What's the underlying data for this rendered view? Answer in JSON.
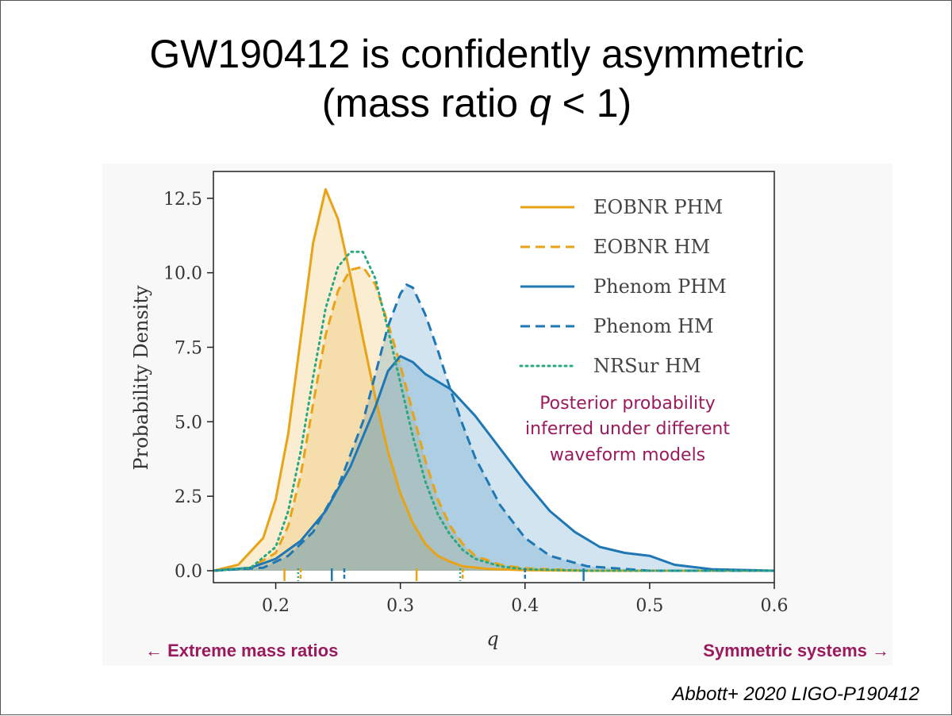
{
  "slide": {
    "title_line1": "GW190412 is confidently asymmetric",
    "title_line2_prefix": "(mass ratio ",
    "title_line2_var": "q",
    "title_line2_suffix": " < 1)",
    "citation": "Abbott+ 2020 LIGO-P190412"
  },
  "chart_data": {
    "type": "line",
    "title": "",
    "xlabel": "q",
    "ylabel": "Probability Density",
    "xlim": [
      0.15,
      0.6
    ],
    "ylim": [
      -0.4,
      13.4
    ],
    "xticks": [
      0.2,
      0.3,
      0.4,
      0.5,
      0.6
    ],
    "xtick_labels": [
      "0.2",
      "0.3",
      "0.4",
      "0.5",
      "0.6"
    ],
    "yticks": [
      0.0,
      2.5,
      5.0,
      7.5,
      10.0,
      12.5
    ],
    "ytick_labels": [
      "0.0",
      "2.5",
      "5.0",
      "7.5",
      "10.0",
      "12.5"
    ],
    "legend_position": "top-right",
    "series": [
      {
        "name": "EOBNR PHM",
        "color": "#e8a317",
        "style": "solid",
        "filled": true,
        "x": [
          0.15,
          0.17,
          0.19,
          0.2,
          0.21,
          0.22,
          0.23,
          0.24,
          0.25,
          0.26,
          0.27,
          0.28,
          0.29,
          0.3,
          0.31,
          0.32,
          0.33,
          0.34,
          0.35,
          0.37,
          0.4,
          0.45,
          0.6
        ],
        "y": [
          0.0,
          0.2,
          1.1,
          2.4,
          4.6,
          7.8,
          11.0,
          12.8,
          11.8,
          9.9,
          7.8,
          5.8,
          4.0,
          2.6,
          1.6,
          0.9,
          0.5,
          0.3,
          0.15,
          0.06,
          0.02,
          0.0,
          0.0
        ],
        "interval_ticks": [
          0.207,
          0.313
        ]
      },
      {
        "name": "EOBNR HM",
        "color": "#e8a317",
        "style": "dashed",
        "filled": true,
        "x": [
          0.15,
          0.18,
          0.2,
          0.21,
          0.22,
          0.23,
          0.24,
          0.25,
          0.26,
          0.27,
          0.28,
          0.29,
          0.3,
          0.31,
          0.32,
          0.33,
          0.34,
          0.35,
          0.36,
          0.38,
          0.4,
          0.45,
          0.6
        ],
        "y": [
          0.0,
          0.1,
          0.6,
          1.5,
          3.2,
          5.6,
          7.9,
          9.4,
          10.1,
          10.2,
          9.6,
          8.3,
          6.9,
          5.3,
          3.7,
          2.4,
          1.5,
          0.9,
          0.5,
          0.2,
          0.08,
          0.0,
          0.0
        ],
        "interval_ticks": [
          0.22,
          0.35
        ]
      },
      {
        "name": "Phenom PHM",
        "color": "#1f77b4",
        "style": "solid",
        "filled": true,
        "x": [
          0.15,
          0.18,
          0.2,
          0.22,
          0.24,
          0.26,
          0.28,
          0.29,
          0.3,
          0.31,
          0.32,
          0.34,
          0.36,
          0.38,
          0.4,
          0.42,
          0.44,
          0.46,
          0.48,
          0.5,
          0.52,
          0.55,
          0.6
        ],
        "y": [
          0.0,
          0.1,
          0.4,
          1.0,
          2.0,
          3.5,
          5.5,
          6.7,
          7.2,
          7.0,
          6.6,
          6.1,
          5.2,
          4.1,
          3.0,
          2.0,
          1.3,
          0.8,
          0.6,
          0.5,
          0.2,
          0.05,
          0.0
        ],
        "interval_ticks": [
          0.245,
          0.447
        ]
      },
      {
        "name": "Phenom HM",
        "color": "#1f77b4",
        "style": "dashed",
        "filled": true,
        "x": [
          0.15,
          0.19,
          0.21,
          0.23,
          0.25,
          0.27,
          0.28,
          0.29,
          0.3,
          0.305,
          0.31,
          0.32,
          0.33,
          0.34,
          0.35,
          0.36,
          0.38,
          0.4,
          0.42,
          0.45,
          0.5,
          0.6
        ],
        "y": [
          0.0,
          0.1,
          0.5,
          1.3,
          2.8,
          5.0,
          6.6,
          8.2,
          9.3,
          9.6,
          9.5,
          8.6,
          7.4,
          6.1,
          4.9,
          3.8,
          2.2,
          1.1,
          0.5,
          0.15,
          0.0,
          0.0
        ],
        "interval_ticks": [
          0.255,
          0.4
        ]
      },
      {
        "name": "NRSur HM",
        "color": "#2ca87e",
        "style": "dotted",
        "filled": false,
        "x": [
          0.15,
          0.18,
          0.2,
          0.21,
          0.22,
          0.23,
          0.24,
          0.25,
          0.26,
          0.27,
          0.28,
          0.29,
          0.3,
          0.31,
          0.32,
          0.33,
          0.34,
          0.35,
          0.36,
          0.38,
          0.4,
          0.45,
          0.6
        ],
        "y": [
          0.0,
          0.1,
          0.8,
          2.0,
          4.0,
          6.5,
          8.8,
          10.2,
          10.7,
          10.7,
          9.8,
          8.1,
          6.3,
          4.5,
          3.0,
          1.9,
          1.2,
          0.7,
          0.4,
          0.15,
          0.05,
          0.0,
          0.0
        ],
        "interval_ticks": [
          0.218,
          0.348
        ]
      }
    ],
    "annotation": {
      "lines": [
        "Posterior probability",
        "inferred under different",
        "waveform models"
      ],
      "color": "#9b1a5e"
    },
    "bottom_notes": {
      "left": "← Extreme mass ratios",
      "right": "Symmetric systems →",
      "color": "#9b1a5e"
    }
  }
}
